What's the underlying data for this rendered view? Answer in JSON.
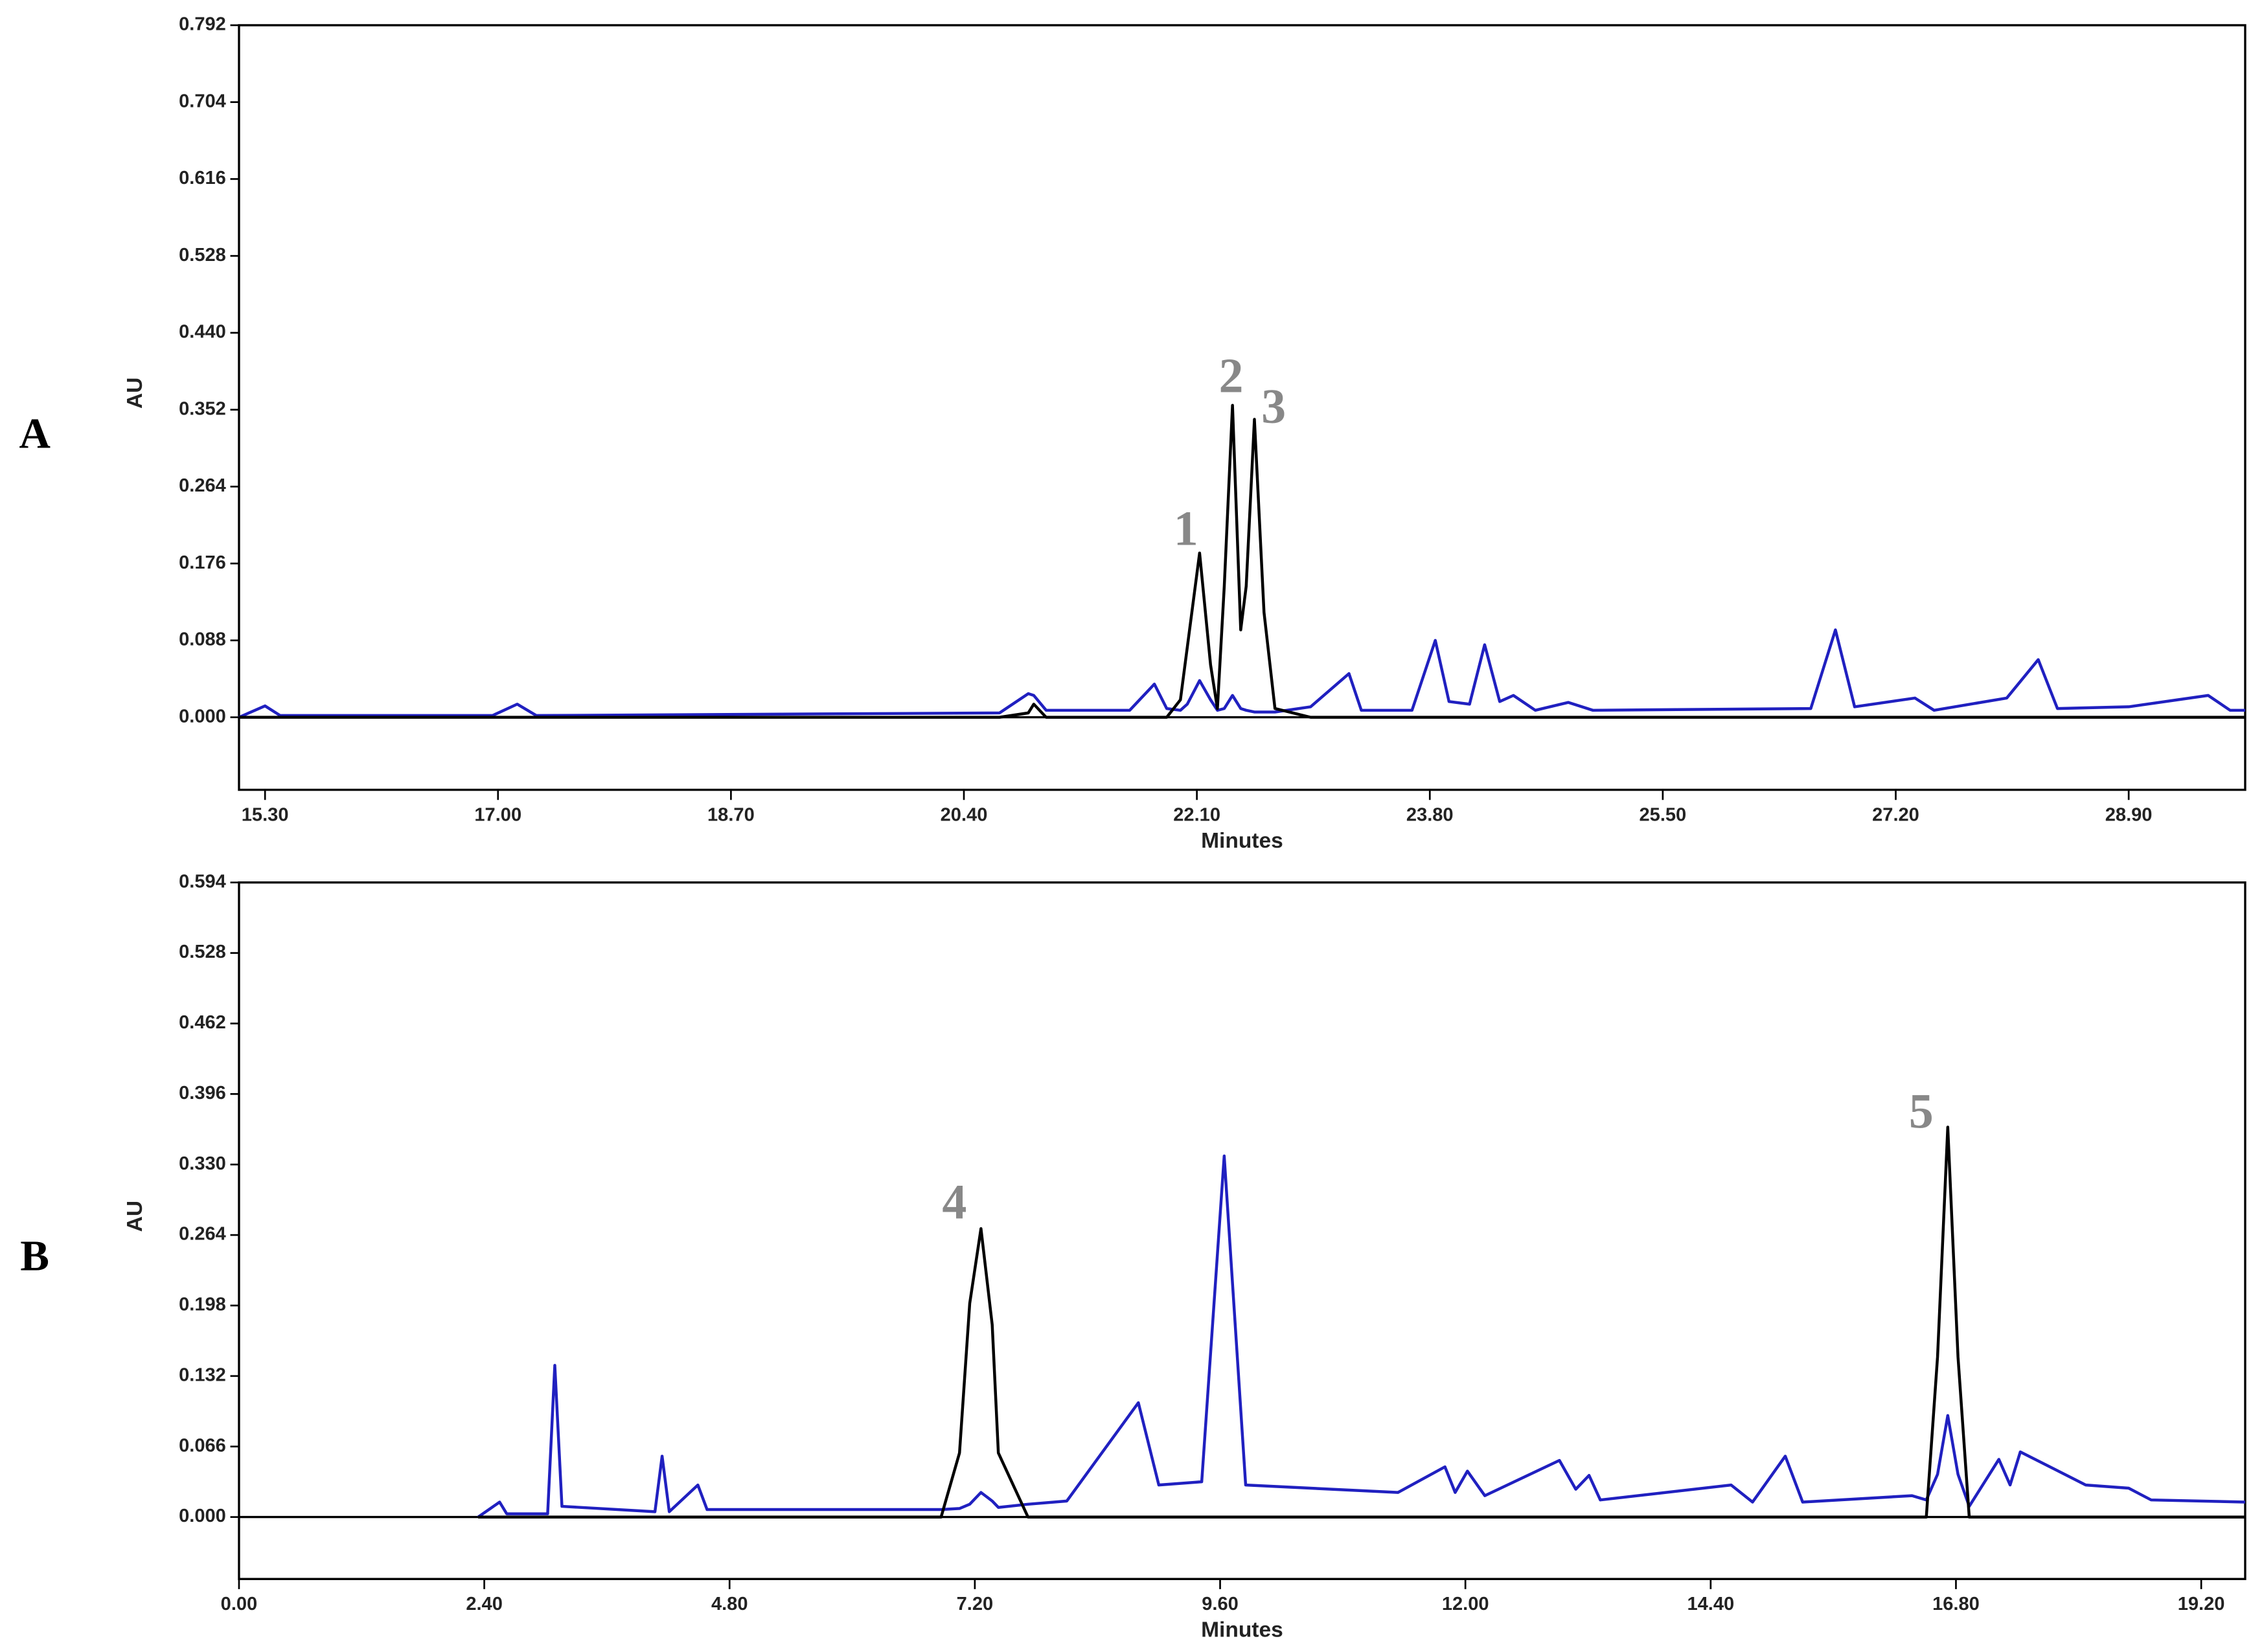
{
  "chart_data": [
    {
      "type": "line",
      "label": "A",
      "x_label": "Minutes",
      "y_label": "AU",
      "xlim": [
        15.11,
        29.75
      ],
      "ylim": [
        -0.083,
        0.792
      ],
      "xticks": [
        {
          "value": 15.3,
          "label": "15.30"
        },
        {
          "value": 17,
          "label": "17.00"
        },
        {
          "value": 18.7,
          "label": "18.70"
        },
        {
          "value": 20.4,
          "label": "20.40"
        },
        {
          "value": 22.1,
          "label": "22.10"
        },
        {
          "value": 23.8,
          "label": "23.80"
        },
        {
          "value": 25.5,
          "label": "25.50"
        },
        {
          "value": 27.2,
          "label": "27.20"
        },
        {
          "value": 28.9,
          "label": "28.90"
        }
      ],
      "yticks": [
        {
          "value": 0,
          "label": "0.000"
        },
        0.088,
        0.176,
        0.264,
        0.352,
        {
          "value": 0.44,
          "label": "0.440"
        },
        0.528,
        0.616,
        0.704,
        0.792
      ],
      "x": [
        15.11,
        15.3,
        15.41,
        16.96,
        17.14,
        17.28,
        20.66,
        20.87,
        20.91,
        21.0,
        21.61,
        21.79,
        21.88,
        21.98,
        22.03,
        22.12,
        22.2,
        22.25,
        22.3,
        22.36,
        22.42,
        22.46,
        22.52,
        22.59,
        22.67,
        22.93,
        23.21,
        23.3,
        23.67,
        23.84,
        23.94,
        24.09,
        24.2,
        24.31,
        24.41,
        24.57,
        24.81,
        24.99,
        26.58,
        26.76,
        26.9,
        27.34,
        27.48,
        28.01,
        28.24,
        28.38,
        28.9,
        29.48,
        29.64,
        29.75
      ],
      "series": [
        {
          "color": "#2020c0",
          "values": [
            0.0,
            0.013,
            0.002,
            0.002,
            0.015,
            0.002,
            0.005,
            0.027,
            0.025,
            0.008,
            0.008,
            0.038,
            0.01,
            0.008,
            0.015,
            0.042,
            0.02,
            0.008,
            0.01,
            0.025,
            0.01,
            0.008,
            0.006,
            0.006,
            0.006,
            0.012,
            0.05,
            0.008,
            0.008,
            0.088,
            0.018,
            0.015,
            0.083,
            0.018,
            0.025,
            0.008,
            0.017,
            0.008,
            0.01,
            0.1,
            0.012,
            0.022,
            0.008,
            0.022,
            0.066,
            0.01,
            0.012,
            0.025,
            0.008,
            0.008
          ]
        },
        {
          "color": "#000000",
          "values": [
            0,
            0,
            0,
            0,
            0,
            0,
            0,
            0.005,
            0.015,
            0,
            0,
            0,
            0,
            0.02,
            0.08,
            0.188,
            0.06,
            0.01,
            0.15,
            0.357,
            0.1,
            0.15,
            0.341,
            0.12,
            0.01,
            0,
            0,
            0,
            0,
            0,
            0,
            0,
            0,
            0,
            0,
            0,
            0,
            0,
            0,
            0,
            0,
            0,
            0,
            0,
            0,
            0,
            0,
            0,
            0,
            0
          ]
        }
      ],
      "annotations": [
        {
          "text": "1",
          "x": 22.02,
          "y": 0.21,
          "color": "#888888"
        },
        {
          "text": "2",
          "x": 22.35,
          "y": 0.385,
          "color": "#888888"
        },
        {
          "text": "3",
          "x": 22.66,
          "y": 0.35,
          "color": "#888888"
        }
      ]
    },
    {
      "type": "line",
      "label": "B",
      "x_label": "Minutes",
      "y_label": "AU",
      "xlim": [
        0,
        19.63
      ],
      "ylim": [
        -0.058,
        0.594
      ],
      "xticks": [
        {
          "value": 0,
          "label": "0.00"
        },
        {
          "value": 2.4,
          "label": "2.40"
        },
        {
          "value": 4.8,
          "label": "4.80"
        },
        {
          "value": 7.2,
          "label": "7.20"
        },
        {
          "value": 9.6,
          "label": "9.60"
        },
        {
          "value": 12,
          "label": "12.00"
        },
        {
          "value": 14.4,
          "label": "14.40"
        },
        {
          "value": 16.8,
          "label": "16.80"
        },
        {
          "value": 19.2,
          "label": "19.20"
        }
      ],
      "yticks": [
        {
          "value": 0,
          "label": "0.000"
        },
        0.066,
        0.132,
        0.198,
        0.264,
        {
          "value": 0.33,
          "label": "0.330"
        },
        0.396,
        0.462,
        0.528,
        0.594
      ],
      "x": [
        2.34,
        2.55,
        2.62,
        3.02,
        3.09,
        3.16,
        4.07,
        4.14,
        4.21,
        4.49,
        4.58,
        6.87,
        7.05,
        7.15,
        7.26,
        7.37,
        7.43,
        7.72,
        8.1,
        8.8,
        9.0,
        9.42,
        9.64,
        9.85,
        11.34,
        11.8,
        11.9,
        12.02,
        12.19,
        12.92,
        13.08,
        13.21,
        13.32,
        14.6,
        14.81,
        15.13,
        15.3,
        16.37,
        16.51,
        16.62,
        16.72,
        16.82,
        16.93,
        17.22,
        17.33,
        17.43,
        18.07,
        18.49,
        18.71,
        19.63
      ],
      "series": [
        {
          "color": "#2020c0",
          "values": [
            0.0,
            0.014,
            0.003,
            0.003,
            0.142,
            0.01,
            0.005,
            0.057,
            0.005,
            0.03,
            0.007,
            0.007,
            0.008,
            0.012,
            0.023,
            0.015,
            0.009,
            0.012,
            0.015,
            0.107,
            0.03,
            0.033,
            0.338,
            0.03,
            0.023,
            0.047,
            0.023,
            0.043,
            0.02,
            0.053,
            0.026,
            0.039,
            0.016,
            0.03,
            0.014,
            0.057,
            0.014,
            0.02,
            0.016,
            0.04,
            0.095,
            0.04,
            0.01,
            0.054,
            0.03,
            0.061,
            0.03,
            0.027,
            0.016,
            0.014
          ]
        },
        {
          "color": "#000000",
          "values": [
            0,
            0,
            0,
            0,
            0,
            0,
            0,
            0,
            0,
            0,
            0,
            0,
            0.06,
            0.2,
            0.27,
            0.18,
            0.06,
            0,
            0,
            0,
            0,
            0,
            0,
            0,
            0,
            0,
            0,
            0,
            0,
            0,
            0,
            0,
            0,
            0,
            0,
            0,
            0,
            0,
            0,
            0.15,
            0.365,
            0.15,
            0,
            0,
            0,
            0,
            0,
            0,
            0,
            0
          ]
        }
      ],
      "annotations": [
        {
          "text": "4",
          "x": 7.0,
          "y": 0.29,
          "color": "#888888"
        },
        {
          "text": "5",
          "x": 16.46,
          "y": 0.375,
          "color": "#888888"
        }
      ]
    }
  ]
}
